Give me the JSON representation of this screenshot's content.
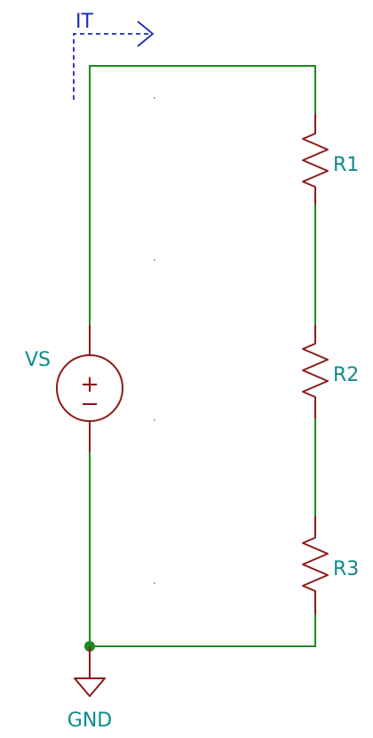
{
  "schematic": {
    "current_probe": {
      "label": "IT"
    },
    "source": {
      "label": "VS",
      "plus": "+",
      "minus": "−"
    },
    "resistors": [
      {
        "label": "R1"
      },
      {
        "label": "R2"
      },
      {
        "label": "R3"
      }
    ],
    "ground": {
      "label": "GND"
    },
    "colors": {
      "wire": "#1f8a1f",
      "component": "#8b1a1a",
      "label": "#0e8a8a",
      "probe": "#1a2fb0",
      "junction": "#1f8a1f"
    }
  }
}
